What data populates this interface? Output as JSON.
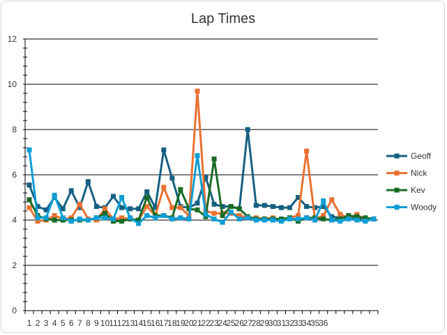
{
  "chart_data": {
    "type": "line",
    "title": "Lap Times",
    "xlabel": "",
    "ylabel": "",
    "ylim": [
      0,
      12
    ],
    "yticks": [
      0,
      2,
      4,
      6,
      8,
      10,
      12
    ],
    "grid": true,
    "legend": "right",
    "x": [
      1,
      2,
      3,
      4,
      5,
      6,
      7,
      8,
      9,
      10,
      11,
      12,
      13,
      14,
      15,
      16,
      17,
      18,
      19,
      20,
      21,
      22,
      23,
      24,
      25,
      26,
      27,
      28,
      29,
      30,
      31,
      32,
      33,
      34,
      35,
      36,
      37,
      38,
      39,
      40,
      41,
      42
    ],
    "x_tick_labels": [
      "1",
      "2",
      "3",
      "4",
      "5",
      "6",
      "7",
      "8",
      "9",
      "10",
      "11",
      "12",
      "13",
      "14",
      "15",
      "16",
      "17",
      "18",
      "19",
      "20",
      "21",
      "22",
      "23",
      "24",
      "25",
      "26",
      "27",
      "28",
      "29",
      "30",
      "31",
      "32",
      "33",
      "34",
      "35",
      "36",
      "",
      "",
      "",
      "",
      "",
      ""
    ],
    "series": [
      {
        "name": "Geoff",
        "color": "#156082",
        "values": [
          5.55,
          4.6,
          4.45,
          5.0,
          4.5,
          5.3,
          4.55,
          5.7,
          4.6,
          4.55,
          5.05,
          4.55,
          4.5,
          4.5,
          5.25,
          4.55,
          7.1,
          5.85,
          4.6,
          4.55,
          4.75,
          5.9,
          4.7,
          4.6,
          4.6,
          4.5,
          8.0,
          4.65,
          4.65,
          4.6,
          4.55,
          4.55,
          5.0,
          4.6,
          4.55,
          4.6,
          4.15,
          4.1,
          4.1,
          4.05,
          4.05,
          4.05
        ]
      },
      {
        "name": "Nick",
        "color": "#E97132",
        "values": [
          4.55,
          3.95,
          4.0,
          4.2,
          4.05,
          4.1,
          4.7,
          4.05,
          4.0,
          4.5,
          4.05,
          4.1,
          4.05,
          4.0,
          4.6,
          4.2,
          5.45,
          4.55,
          4.55,
          4.2,
          9.7,
          4.4,
          4.3,
          4.3,
          4.3,
          4.2,
          4.1,
          4.1,
          4.05,
          4.1,
          4.0,
          4.1,
          4.2,
          7.05,
          4.05,
          4.2,
          4.9,
          4.25,
          4.1,
          4.25,
          4.0,
          4.05
        ]
      },
      {
        "name": "Kev",
        "color": "#196B24",
        "values": [
          4.9,
          4.2,
          4.05,
          4.0,
          4.0,
          4.0,
          4.0,
          4.0,
          4.1,
          4.3,
          3.95,
          3.95,
          4.05,
          4.0,
          5.0,
          4.2,
          4.2,
          4.1,
          5.35,
          4.5,
          4.45,
          4.15,
          6.7,
          4.2,
          4.6,
          4.5,
          4.15,
          4.05,
          4.05,
          4.05,
          4.05,
          4.1,
          3.95,
          4.1,
          4.1,
          4.05,
          4.0,
          4.05,
          4.2,
          4.15,
          4.1,
          4.05
        ]
      },
      {
        "name": "Woody",
        "color": "#0F9ED5",
        "values": [
          7.1,
          4.1,
          4.1,
          5.1,
          4.1,
          3.95,
          4.05,
          4.0,
          4.1,
          4.1,
          4.05,
          5.0,
          4.1,
          3.85,
          4.2,
          4.1,
          4.2,
          4.05,
          4.1,
          4.05,
          6.85,
          4.25,
          4.05,
          3.9,
          4.35,
          4.05,
          4.1,
          4.0,
          4.0,
          4.0,
          3.95,
          4.05,
          4.05,
          4.1,
          4.0,
          4.85,
          4.0,
          3.95,
          4.05,
          4.0,
          3.95,
          4.05
        ]
      }
    ]
  }
}
